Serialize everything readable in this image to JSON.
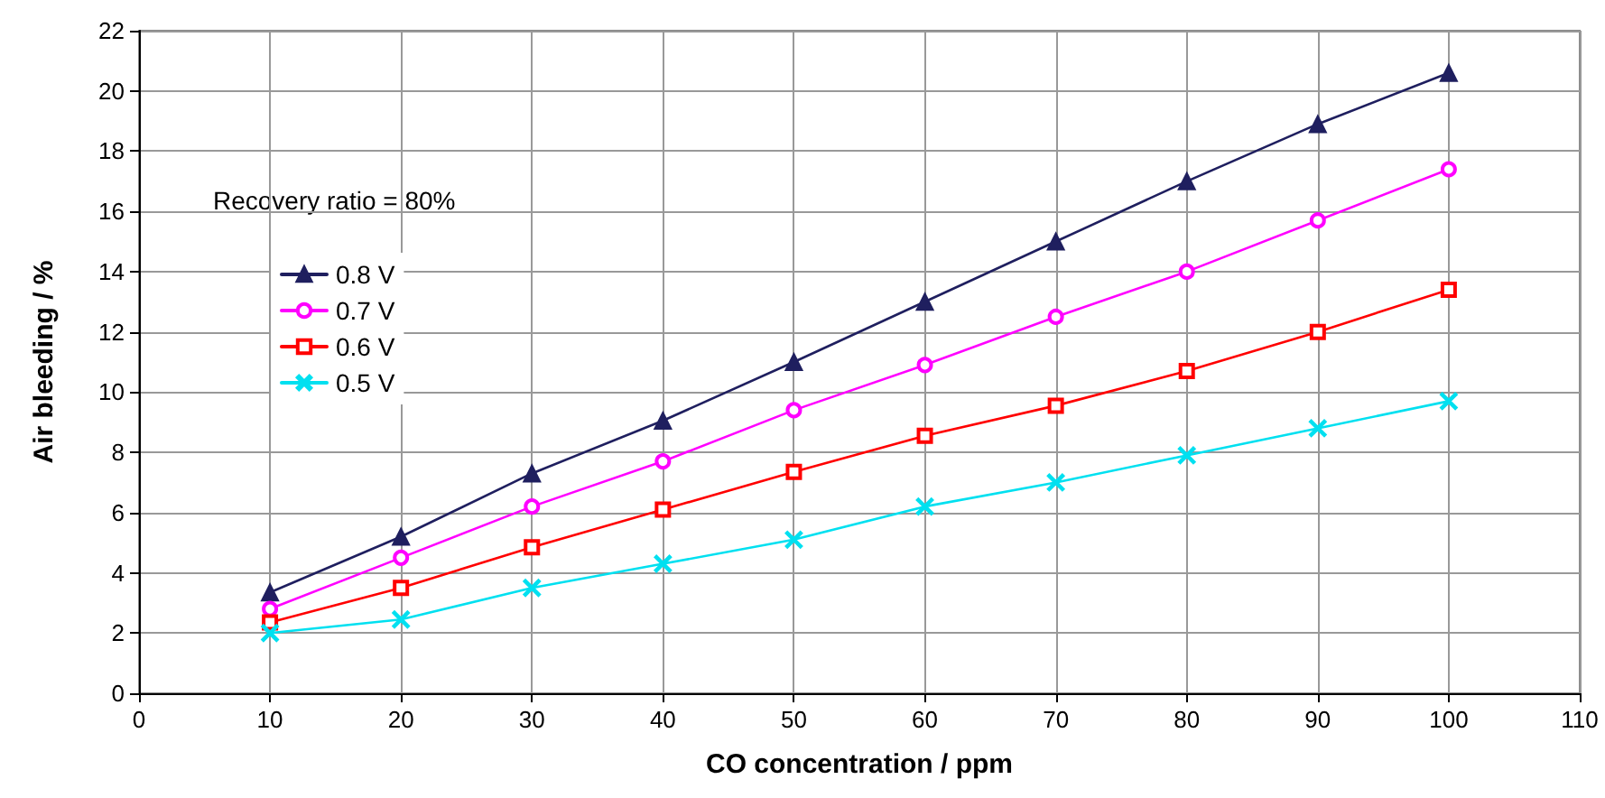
{
  "chart_data": {
    "type": "line",
    "xlabel": "CO concentration / ppm",
    "ylabel": "Air bleeding / %",
    "legend_title": "Recovery ratio = 80%",
    "legend": "top left",
    "grid": true,
    "line_style": "solid",
    "x": [
      10,
      20,
      30,
      40,
      50,
      60,
      70,
      80,
      90,
      100
    ],
    "xlim": [
      0,
      110
    ],
    "xticks": [
      0,
      10,
      20,
      30,
      40,
      50,
      60,
      70,
      80,
      90,
      100,
      110
    ],
    "ylim": [
      0,
      22
    ],
    "yticks": [
      0,
      2,
      4,
      6,
      8,
      10,
      12,
      14,
      16,
      18,
      20,
      22
    ],
    "series": [
      {
        "name": "0.8 V",
        "color": "#1f1f5f",
        "marker": "triangle",
        "values": [
          3.35,
          5.2,
          7.3,
          9.05,
          11.0,
          13.0,
          15.0,
          17.0,
          18.9,
          20.6
        ]
      },
      {
        "name": "0.7 V",
        "color": "#ff00ff",
        "marker": "circle",
        "values": [
          2.8,
          4.5,
          6.2,
          7.7,
          9.4,
          10.9,
          12.5,
          14.0,
          15.7,
          17.4
        ]
      },
      {
        "name": "0.6 V",
        "color": "#ff0000",
        "marker": "square",
        "values": [
          2.35,
          3.5,
          4.85,
          6.1,
          7.35,
          8.55,
          9.55,
          10.7,
          12.0,
          13.4
        ]
      },
      {
        "name": "0.5 V",
        "color": "#00e0f0",
        "marker": "cross",
        "values": [
          2.0,
          2.45,
          3.5,
          4.3,
          5.1,
          6.2,
          7.0,
          7.9,
          8.8,
          9.7
        ]
      }
    ]
  }
}
